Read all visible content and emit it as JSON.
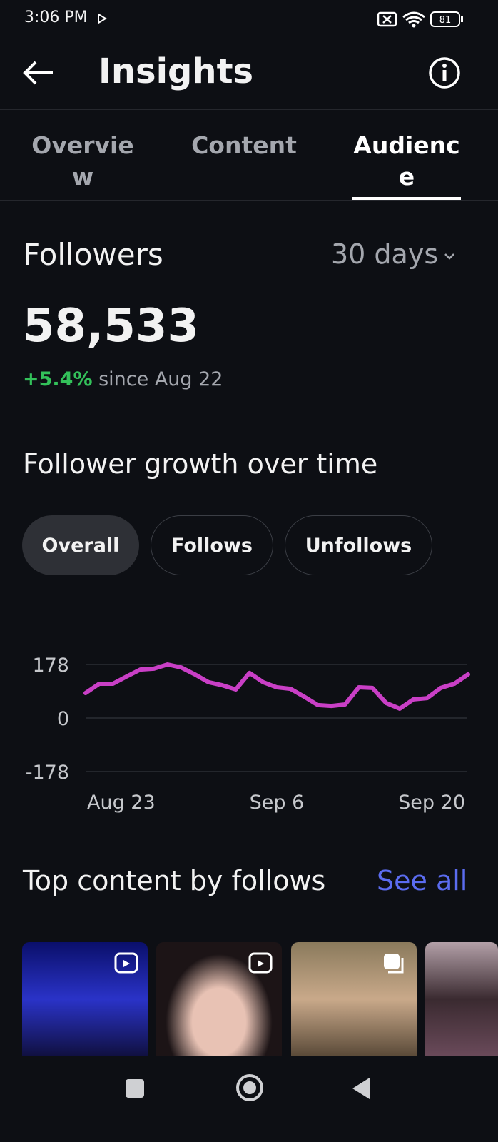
{
  "status_bar": {
    "time": "3:06 PM",
    "battery": "81"
  },
  "header": {
    "title": "Insights"
  },
  "tabs": [
    "Overview",
    "Content",
    "Audience"
  ],
  "followers": {
    "label": "Followers",
    "period": "30 days",
    "count": "58,533",
    "change": "+5.4%",
    "since": "since Aug 22"
  },
  "growth": {
    "title": "Follower growth over time",
    "filters": [
      "Overall",
      "Follows",
      "Unfollows"
    ]
  },
  "chart_data": {
    "type": "line",
    "categories": [
      "Aug 23",
      null,
      null,
      null,
      null,
      null,
      null,
      null,
      null,
      null,
      null,
      null,
      null,
      null,
      "Sep 6",
      null,
      null,
      null,
      null,
      null,
      null,
      null,
      null,
      null,
      null,
      null,
      null,
      null,
      "Sep 20"
    ],
    "values": [
      83,
      114,
      114,
      138,
      161,
      164,
      178,
      168,
      145,
      119,
      109,
      95,
      150,
      119,
      102,
      97,
      71,
      43,
      40,
      45,
      102,
      100,
      50,
      31,
      62,
      66,
      100,
      114,
      145
    ],
    "color": "#c93fc6",
    "ylim": [
      -178,
      178
    ],
    "yticks": [
      -178,
      0,
      178
    ],
    "grid": true
  },
  "top_content": {
    "title": "Top content by follows",
    "see_all": "See all"
  }
}
